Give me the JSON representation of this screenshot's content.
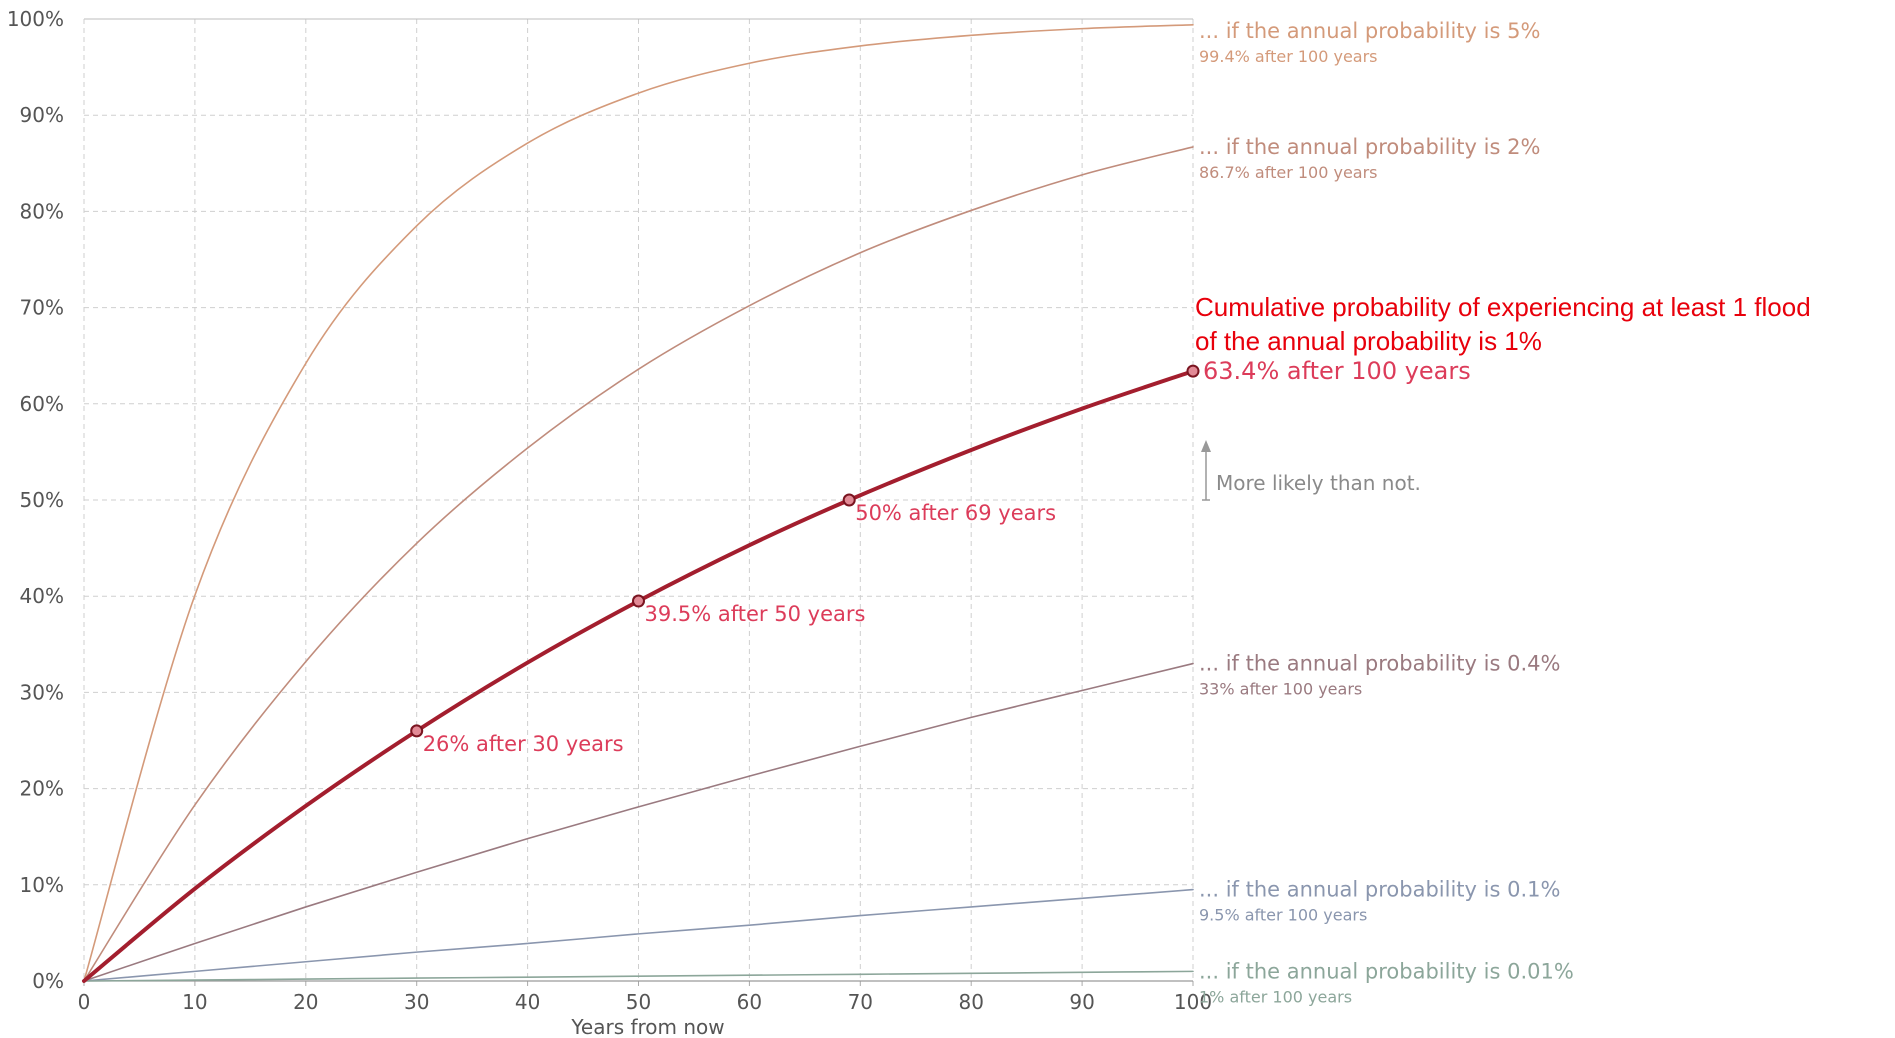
{
  "chart_data": {
    "type": "line",
    "title": "Cumulative probability of experiencing at least 1 flood",
    "subtitle": "of the annual probability is 1%",
    "xlabel": "Years from now",
    "ylabel": "",
    "xlim": [
      0,
      100
    ],
    "ylim": [
      0,
      100
    ],
    "x_ticks": [
      "0",
      "10",
      "20",
      "30",
      "40",
      "50",
      "60",
      "70",
      "80",
      "90",
      "100"
    ],
    "y_ticks": [
      "0%",
      "10%",
      "20%",
      "30%",
      "40%",
      "50%",
      "60%",
      "70%",
      "80%",
      "90%",
      "100%"
    ],
    "grid": true,
    "series": [
      {
        "name": "... if the annual probability is 5%",
        "annual_rate": 5,
        "end_label": "99.4% after 100 years",
        "color": "#d49a7a",
        "x": [
          0,
          10,
          20,
          30,
          40,
          50,
          60,
          70,
          80,
          90,
          100
        ],
        "values": [
          0,
          40.1,
          64.2,
          78.5,
          87.1,
          92.3,
          95.4,
          97.2,
          98.3,
          99.0,
          99.4
        ]
      },
      {
        "name": "... if the annual probability is 2%",
        "annual_rate": 2,
        "end_label": "86.7% after 100 years",
        "color": "#c08c7c",
        "x": [
          0,
          10,
          20,
          30,
          40,
          50,
          60,
          70,
          80,
          90,
          100
        ],
        "values": [
          0,
          18.3,
          33.2,
          45.5,
          55.4,
          63.6,
          70.2,
          75.7,
          80.1,
          83.8,
          86.7
        ]
      },
      {
        "name": "... if the annual probability is 0.4%",
        "annual_rate": 0.4,
        "end_label": "33% after 100 years",
        "color": "#9a7a80",
        "x": [
          0,
          10,
          20,
          30,
          40,
          50,
          60,
          70,
          80,
          90,
          100
        ],
        "values": [
          0,
          3.9,
          7.7,
          11.3,
          14.8,
          18.1,
          21.3,
          24.4,
          27.4,
          30.2,
          33.0
        ]
      },
      {
        "name": "... if the annual probability is 0.1%",
        "annual_rate": 0.1,
        "end_label": "9.5% after 100 years",
        "color": "#8a96ae",
        "x": [
          0,
          10,
          20,
          30,
          40,
          50,
          60,
          70,
          80,
          90,
          100
        ],
        "values": [
          0,
          1.0,
          2.0,
          3.0,
          3.9,
          4.9,
          5.8,
          6.8,
          7.7,
          8.6,
          9.5
        ]
      },
      {
        "name": "... if the annual probability is 0.01%",
        "annual_rate": 0.01,
        "end_label": "1% after 100 years",
        "color": "#8ca69a",
        "x": [
          0,
          10,
          20,
          30,
          40,
          50,
          60,
          70,
          80,
          90,
          100
        ],
        "values": [
          0,
          0.1,
          0.2,
          0.3,
          0.4,
          0.5,
          0.6,
          0.7,
          0.8,
          0.9,
          1.0
        ]
      },
      {
        "name": "",
        "annual_rate": 1,
        "highlight": true,
        "color": "#a31e2e",
        "x": [
          0,
          10,
          20,
          30,
          40,
          50,
          60,
          69,
          80,
          90,
          100
        ],
        "values": [
          0,
          9.6,
          18.2,
          26.0,
          33.1,
          39.5,
          45.3,
          50.0,
          55.2,
          59.5,
          63.4
        ]
      }
    ],
    "highlight_points": [
      {
        "x": 30,
        "y": 26,
        "label": "26% after 30 years"
      },
      {
        "x": 50,
        "y": 39.5,
        "label": "39.5% after 50 years"
      },
      {
        "x": 69,
        "y": 50,
        "label": "50% after 69 years"
      },
      {
        "x": 100,
        "y": 63.4,
        "label": "63.4% after 100 years"
      }
    ],
    "annotation": {
      "text": "More likely than not.",
      "y": 50
    }
  }
}
